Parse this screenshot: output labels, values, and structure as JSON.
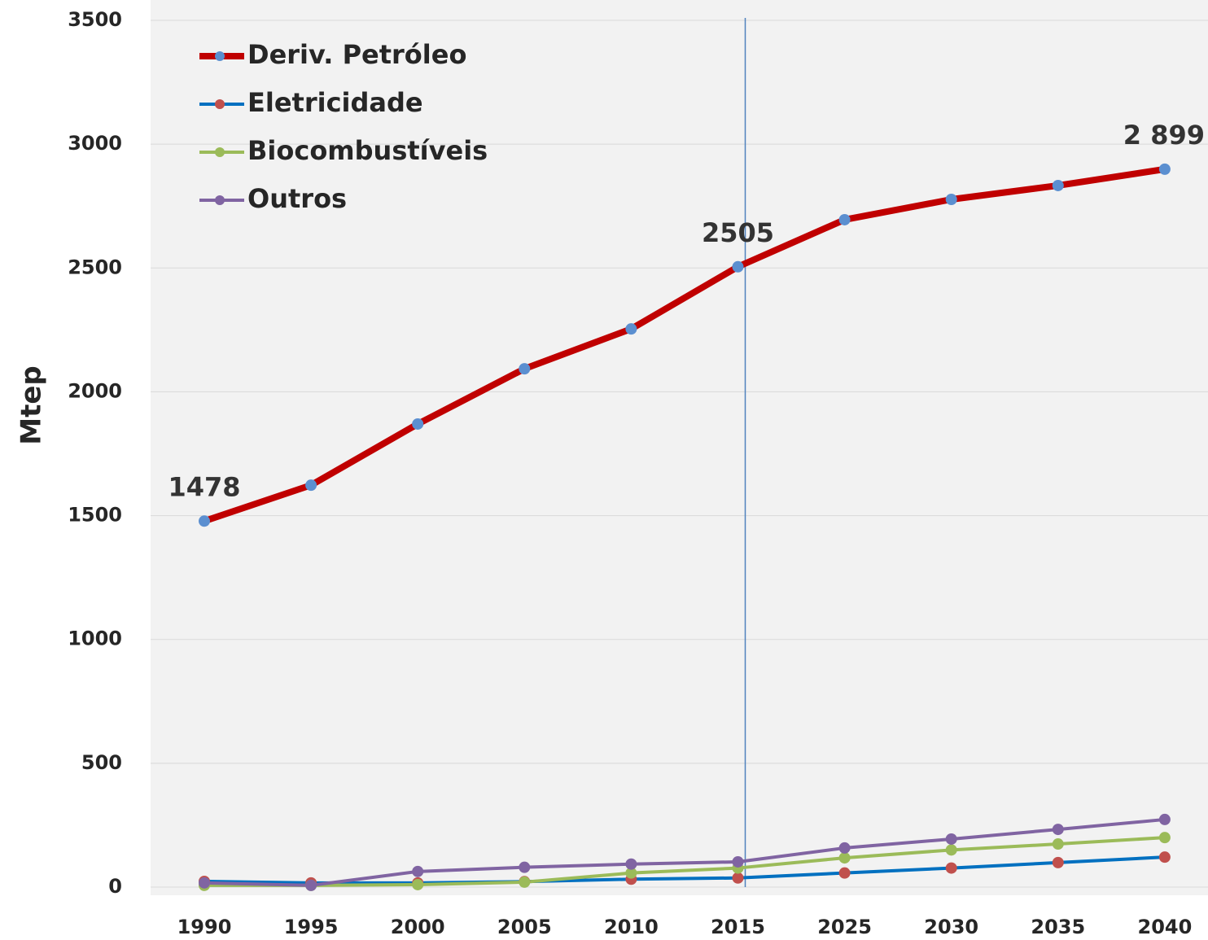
{
  "chart_data": {
    "type": "line",
    "y_label": "Mtep",
    "categories": [
      "1990",
      "1995",
      "2000",
      "2005",
      "2010",
      "2015",
      "2025",
      "2030",
      "2035",
      "2040"
    ],
    "series": [
      {
        "name": "Deriv. Petróleo",
        "color": "#c00000",
        "marker_color": "#5b8fd0",
        "values": [
          1478,
          1623,
          1870,
          2093,
          2254,
          2505,
          2695,
          2777,
          2833,
          2899
        ],
        "value_labels": [
          "1478",
          null,
          null,
          null,
          null,
          "2505",
          null,
          null,
          null,
          "2 899"
        ]
      },
      {
        "name": "Eletricidade",
        "color": "#0070c0",
        "marker_color": "#c0504d",
        "values": [
          23,
          17,
          17,
          22,
          32,
          37,
          57,
          77,
          99,
          121
        ]
      },
      {
        "name": "Biocombustíveis",
        "color": "#9bbb59",
        "marker_color": "#9bbb59",
        "values": [
          7,
          7,
          10,
          20,
          57,
          77,
          118,
          150,
          174,
          200
        ]
      },
      {
        "name": "Outros",
        "color": "#8064a2",
        "marker_color": "#8064a2",
        "values": [
          17,
          7,
          63,
          80,
          93,
          102,
          158,
          194,
          233,
          273
        ]
      }
    ],
    "divider_category": "2015",
    "ylim": [
      0,
      3500
    ],
    "yticks": [
      0,
      500,
      1000,
      1500,
      2000,
      2500,
      3000,
      3500
    ],
    "grid": true,
    "legend": "top-left"
  }
}
